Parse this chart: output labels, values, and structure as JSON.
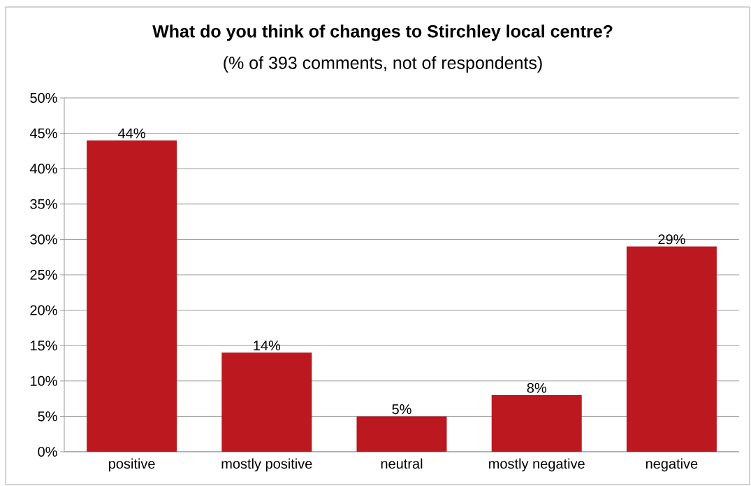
{
  "chart_data": {
    "type": "bar",
    "title": "What do you think of changes to Stirchley local centre?",
    "subtitle": "(% of 393 comments, not of respondents)",
    "categories": [
      "positive",
      "mostly positive",
      "neutral",
      "mostly negative",
      "negative"
    ],
    "values": [
      44,
      14,
      5,
      8,
      29
    ],
    "value_labels": [
      "44%",
      "14%",
      "5%",
      "8%",
      "29%"
    ],
    "color": "#bc1820",
    "ylim": [
      0,
      50
    ],
    "yticks": [
      {
        "value": 0,
        "label": "0%"
      },
      {
        "value": 5,
        "label": "5%"
      },
      {
        "value": 10,
        "label": "10%"
      },
      {
        "value": 15,
        "label": "15%"
      },
      {
        "value": 20,
        "label": "20%"
      },
      {
        "value": 25,
        "label": "25%"
      },
      {
        "value": 30,
        "label": "30%"
      },
      {
        "value": 35,
        "label": "35%"
      },
      {
        "value": 40,
        "label": "40%"
      },
      {
        "value": 45,
        "label": "45%"
      },
      {
        "value": 50,
        "label": "50%"
      }
    ],
    "grid": "y"
  }
}
